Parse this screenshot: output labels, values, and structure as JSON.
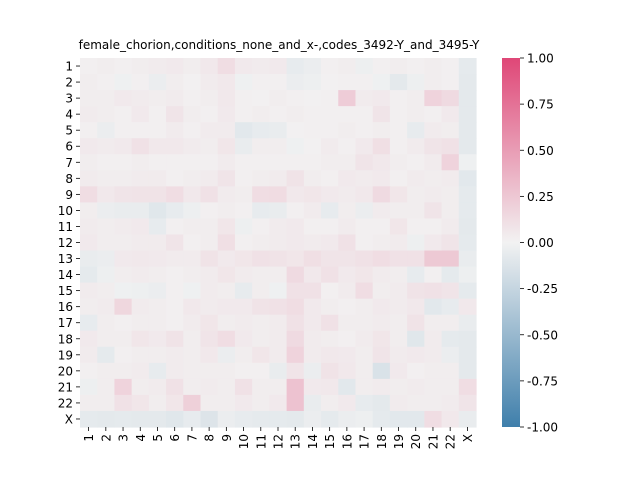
{
  "chart_data": {
    "type": "heatmap",
    "title": "female_chorion,conditions_none_and_x-,codes_3492-Y_and_3495-Y",
    "xlabel": "",
    "ylabel": "",
    "x_categories": [
      "1",
      "2",
      "3",
      "4",
      "5",
      "6",
      "7",
      "8",
      "9",
      "10",
      "11",
      "12",
      "13",
      "14",
      "15",
      "16",
      "17",
      "18",
      "19",
      "20",
      "21",
      "22",
      "X"
    ],
    "y_categories": [
      "1",
      "2",
      "3",
      "4",
      "5",
      "6",
      "7",
      "8",
      "9",
      "10",
      "11",
      "12",
      "13",
      "14",
      "15",
      "16",
      "17",
      "18",
      "19",
      "20",
      "21",
      "22",
      "X"
    ],
    "colorbar": {
      "vmin": -1.0,
      "vmax": 1.0,
      "ticks": [
        "-1.00",
        "-0.75",
        "-0.50",
        "-0.25",
        "0.00",
        "0.25",
        "0.50",
        "0.75",
        "1.00"
      ],
      "colors": {
        "low": "#3f7fab",
        "mid": "#f2f2f2",
        "high": "#df4777"
      }
    },
    "values": [
      [
        0.02,
        0.03,
        0.02,
        0.03,
        0.04,
        0.05,
        0.03,
        0.06,
        0.12,
        0.05,
        0.04,
        0.05,
        -0.06,
        -0.04,
        0.02,
        0.03,
        -0.03,
        0.02,
        0.03,
        0.02,
        0.03,
        0.02,
        -0.07
      ],
      [
        0.03,
        0.02,
        -0.02,
        0.02,
        -0.04,
        0.03,
        0.01,
        0.04,
        0.06,
        -0.02,
        0.02,
        0.02,
        -0.04,
        -0.03,
        0.01,
        0.02,
        0.02,
        -0.02,
        -0.08,
        -0.03,
        0.03,
        0.02,
        -0.08
      ],
      [
        0.03,
        0.03,
        0.05,
        0.04,
        0.03,
        0.04,
        0.02,
        0.03,
        0.06,
        0.02,
        0.01,
        0.03,
        0.02,
        0.01,
        0.02,
        0.22,
        0.04,
        0.05,
        0.02,
        0.03,
        0.18,
        0.14,
        -0.08
      ],
      [
        0.04,
        0.03,
        0.02,
        0.05,
        0.02,
        0.08,
        0.03,
        0.02,
        0.05,
        0.02,
        0.03,
        0.02,
        0.03,
        0.02,
        0.02,
        0.02,
        0.02,
        0.08,
        0.02,
        0.03,
        0.02,
        0.05,
        -0.08
      ],
      [
        0.02,
        -0.04,
        0.02,
        0.02,
        0.02,
        0.04,
        0.02,
        0.04,
        0.04,
        -0.09,
        -0.06,
        -0.05,
        0.01,
        0.02,
        0.02,
        0.03,
        0.02,
        0.03,
        0.02,
        -0.06,
        0.04,
        0.03,
        -0.08
      ],
      [
        0.05,
        0.04,
        0.05,
        0.1,
        0.06,
        0.06,
        0.04,
        0.03,
        0.07,
        -0.05,
        0.03,
        0.03,
        -0.02,
        0.01,
        0.04,
        0.02,
        0.05,
        0.11,
        0.02,
        0.04,
        0.08,
        0.1,
        -0.08
      ],
      [
        0.03,
        0.02,
        0.02,
        0.03,
        0.02,
        0.02,
        0.02,
        0.02,
        0.04,
        0.02,
        0.02,
        0.02,
        0.02,
        0.02,
        0.03,
        0.03,
        0.08,
        0.06,
        0.03,
        0.02,
        0.04,
        0.18,
        -0.02
      ],
      [
        0.04,
        0.03,
        0.03,
        0.04,
        0.04,
        0.02,
        0.03,
        0.04,
        0.08,
        0.02,
        0.03,
        0.04,
        0.09,
        0.03,
        0.02,
        0.05,
        0.04,
        0.05,
        0.02,
        0.04,
        0.03,
        0.04,
        -0.09
      ],
      [
        0.12,
        0.06,
        0.08,
        0.09,
        0.09,
        0.12,
        0.06,
        0.1,
        0.04,
        0.03,
        0.12,
        0.13,
        0.06,
        0.07,
        0.05,
        0.04,
        0.06,
        0.14,
        0.07,
        0.03,
        0.04,
        0.03,
        -0.07
      ],
      [
        0.03,
        -0.04,
        -0.05,
        -0.05,
        -0.1,
        -0.06,
        -0.03,
        0.02,
        0.03,
        0.02,
        -0.06,
        -0.05,
        0.02,
        0.04,
        -0.06,
        0.03,
        -0.04,
        0.04,
        0.03,
        0.03,
        0.08,
        0.03,
        -0.07
      ],
      [
        0.04,
        0.03,
        0.04,
        0.05,
        -0.06,
        0.02,
        0.03,
        0.03,
        0.07,
        -0.03,
        0.02,
        0.04,
        0.05,
        0.02,
        0.02,
        0.04,
        0.02,
        0.02,
        0.07,
        0.02,
        0.02,
        0.04,
        -0.08
      ],
      [
        0.05,
        0.03,
        0.03,
        0.04,
        0.04,
        0.08,
        0.02,
        0.03,
        0.11,
        0.02,
        0.03,
        0.04,
        0.05,
        0.04,
        0.05,
        0.1,
        0.02,
        0.03,
        0.04,
        -0.03,
        0.05,
        0.08,
        -0.07
      ],
      [
        -0.05,
        -0.04,
        0.05,
        0.06,
        0.05,
        0.04,
        0.04,
        0.09,
        0.05,
        0.07,
        0.1,
        0.09,
        0.07,
        0.11,
        0.08,
        0.08,
        0.1,
        0.12,
        0.1,
        0.1,
        0.24,
        0.24,
        -0.05
      ],
      [
        -0.07,
        -0.03,
        0.03,
        0.04,
        0.03,
        0.02,
        0.03,
        0.04,
        0.07,
        0.04,
        0.03,
        0.03,
        0.14,
        0.06,
        0.1,
        0.05,
        0.07,
        0.04,
        0.03,
        -0.06,
        0.02,
        -0.07,
        -0.03
      ],
      [
        0.04,
        0.03,
        -0.02,
        -0.03,
        -0.04,
        0.02,
        -0.02,
        0.04,
        0.03,
        -0.06,
        0.03,
        -0.02,
        0.1,
        0.1,
        0.02,
        0.04,
        0.12,
        0.03,
        0.04,
        0.09,
        0.1,
        0.08,
        -0.07
      ],
      [
        0.03,
        0.04,
        0.16,
        0.04,
        0.03,
        0.02,
        0.06,
        0.04,
        0.05,
        0.05,
        0.09,
        0.1,
        0.12,
        0.05,
        0.03,
        0.02,
        0.03,
        0.05,
        0.04,
        0.06,
        -0.09,
        -0.06,
        0.06
      ],
      [
        -0.06,
        0.03,
        0.02,
        0.03,
        0.03,
        0.02,
        0.04,
        0.07,
        0.03,
        0.04,
        0.03,
        0.04,
        0.1,
        0.05,
        0.1,
        0.03,
        0.03,
        0.04,
        0.03,
        0.09,
        0.03,
        0.03,
        -0.05
      ],
      [
        0.05,
        0.03,
        0.03,
        0.07,
        0.05,
        0.09,
        0.03,
        0.08,
        0.12,
        0.05,
        0.03,
        0.04,
        0.14,
        0.04,
        0.03,
        0.02,
        0.04,
        0.07,
        0.03,
        -0.1,
        0.04,
        -0.07,
        -0.08
      ],
      [
        0.04,
        -0.07,
        0.02,
        0.03,
        0.03,
        0.04,
        0.03,
        0.06,
        -0.04,
        0.03,
        0.07,
        0.04,
        0.18,
        0.04,
        0.06,
        0.05,
        0.03,
        0.08,
        0.04,
        0.05,
        0.04,
        -0.04,
        -0.08
      ],
      [
        0.02,
        0.03,
        0.03,
        0.04,
        -0.06,
        0.04,
        0.03,
        0.03,
        0.03,
        0.02,
        0.02,
        -0.05,
        0.08,
        -0.04,
        0.09,
        0.06,
        0.03,
        -0.14,
        0.05,
        0.02,
        0.03,
        0.03,
        -0.08
      ],
      [
        -0.03,
        0.03,
        0.18,
        0.03,
        0.04,
        0.1,
        0.03,
        0.04,
        0.03,
        0.1,
        0.03,
        0.03,
        0.28,
        0.05,
        0.06,
        -0.09,
        0.03,
        0.04,
        0.03,
        0.04,
        0.03,
        0.03,
        0.12
      ],
      [
        0.03,
        0.03,
        0.1,
        0.07,
        0.03,
        0.07,
        0.2,
        0.03,
        0.03,
        0.05,
        0.03,
        0.05,
        0.28,
        -0.05,
        0.03,
        0.05,
        -0.06,
        -0.08,
        0.04,
        0.03,
        0.03,
        0.04,
        0.08
      ],
      [
        -0.07,
        -0.08,
        -0.07,
        -0.08,
        -0.08,
        -0.1,
        -0.06,
        -0.12,
        -0.04,
        -0.06,
        -0.07,
        -0.07,
        -0.08,
        -0.04,
        -0.07,
        -0.04,
        -0.03,
        -0.07,
        -0.09,
        -0.09,
        0.12,
        0.06,
        -0.05
      ]
    ]
  }
}
